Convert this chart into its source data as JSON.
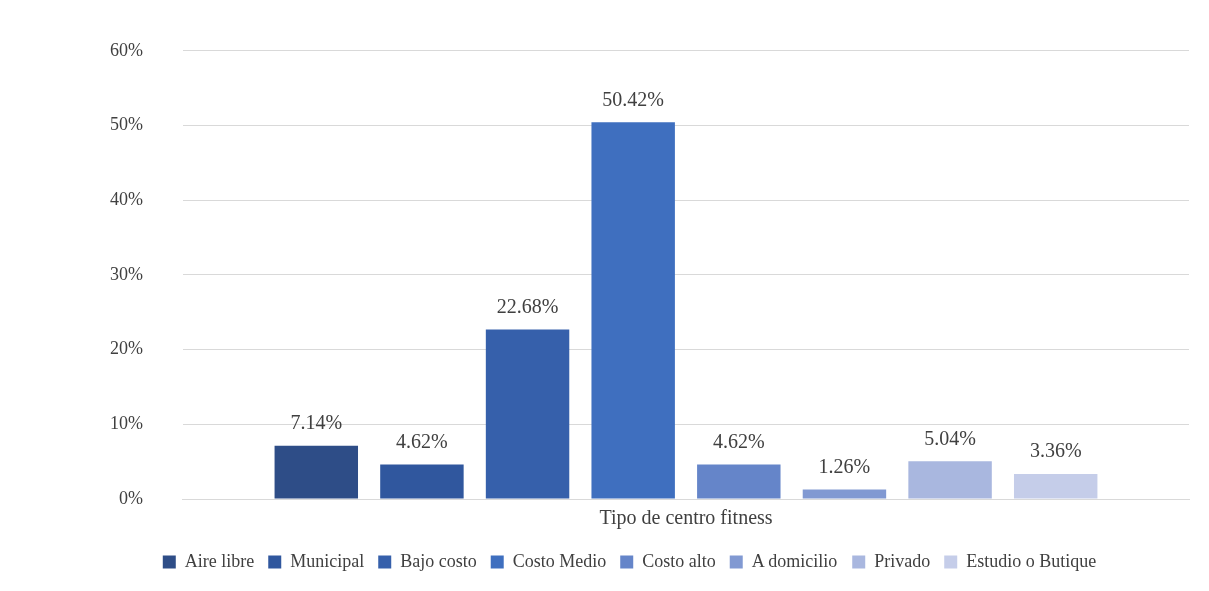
{
  "chart_data": {
    "type": "bar",
    "categories": [
      "Tipo de centro fitness"
    ],
    "series": [
      {
        "name": "Aire libre",
        "color": "#2e4d87",
        "values": [
          7.14
        ],
        "value_labels": [
          "7.14%"
        ]
      },
      {
        "name": "Municipal",
        "color": "#30579e",
        "values": [
          4.62
        ],
        "value_labels": [
          "4.62%"
        ]
      },
      {
        "name": "Bajo costo",
        "color": "#3660ab",
        "values": [
          22.68
        ],
        "value_labels": [
          "22.68%"
        ]
      },
      {
        "name": "Costo Medio",
        "color": "#3f6fbf",
        "values": [
          50.42
        ],
        "value_labels": [
          "50.42%"
        ]
      },
      {
        "name": "Costo alto",
        "color": "#6585c9",
        "values": [
          4.62
        ],
        "value_labels": [
          "4.62%"
        ]
      },
      {
        "name": "A domicilio",
        "color": "#8199d2",
        "values": [
          1.26
        ],
        "value_labels": [
          "1.26%"
        ]
      },
      {
        "name": "Privado",
        "color": "#a9b7df",
        "values": [
          5.04
        ],
        "value_labels": [
          "5.04%"
        ]
      },
      {
        "name": "Estudio o Butique",
        "color": "#c5cde9",
        "values": [
          3.36
        ],
        "value_labels": [
          "3.36%"
        ]
      }
    ],
    "ylim": [
      0,
      60
    ],
    "yticks": [
      {
        "value": 0,
        "label": "0%"
      },
      {
        "value": 10,
        "label": "10%"
      },
      {
        "value": 20,
        "label": "20%"
      },
      {
        "value": 30,
        "label": "30%"
      },
      {
        "value": 40,
        "label": "40%"
      },
      {
        "value": 50,
        "label": "50%"
      },
      {
        "value": 60,
        "label": "60%"
      }
    ],
    "grid": "y",
    "legend": "bottom"
  }
}
